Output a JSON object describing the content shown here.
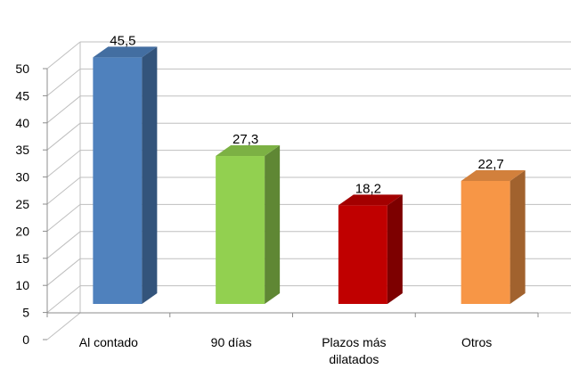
{
  "chart_data": {
    "type": "bar",
    "style": "3d-clustered-column",
    "categories": [
      "Al contado",
      "90 días",
      "Plazos más dilatados",
      "Otros"
    ],
    "category_lines": [
      [
        "Al contado"
      ],
      [
        "90 días"
      ],
      [
        "Plazos más",
        "dilatados"
      ],
      [
        "Otros"
      ]
    ],
    "values": [
      45.5,
      27.3,
      18.2,
      22.7
    ],
    "value_labels": [
      "45,5",
      "27,3",
      "18,2",
      "22,7"
    ],
    "colors": [
      "#4f81bd",
      "#92d050",
      "#c00000",
      "#f79646"
    ],
    "title": "",
    "xlabel": "",
    "ylabel": "",
    "ylim": [
      0,
      50
    ],
    "yticks": [
      0,
      5,
      10,
      15,
      20,
      25,
      30,
      35,
      40,
      45,
      50
    ],
    "grid": true,
    "legend": "none"
  }
}
